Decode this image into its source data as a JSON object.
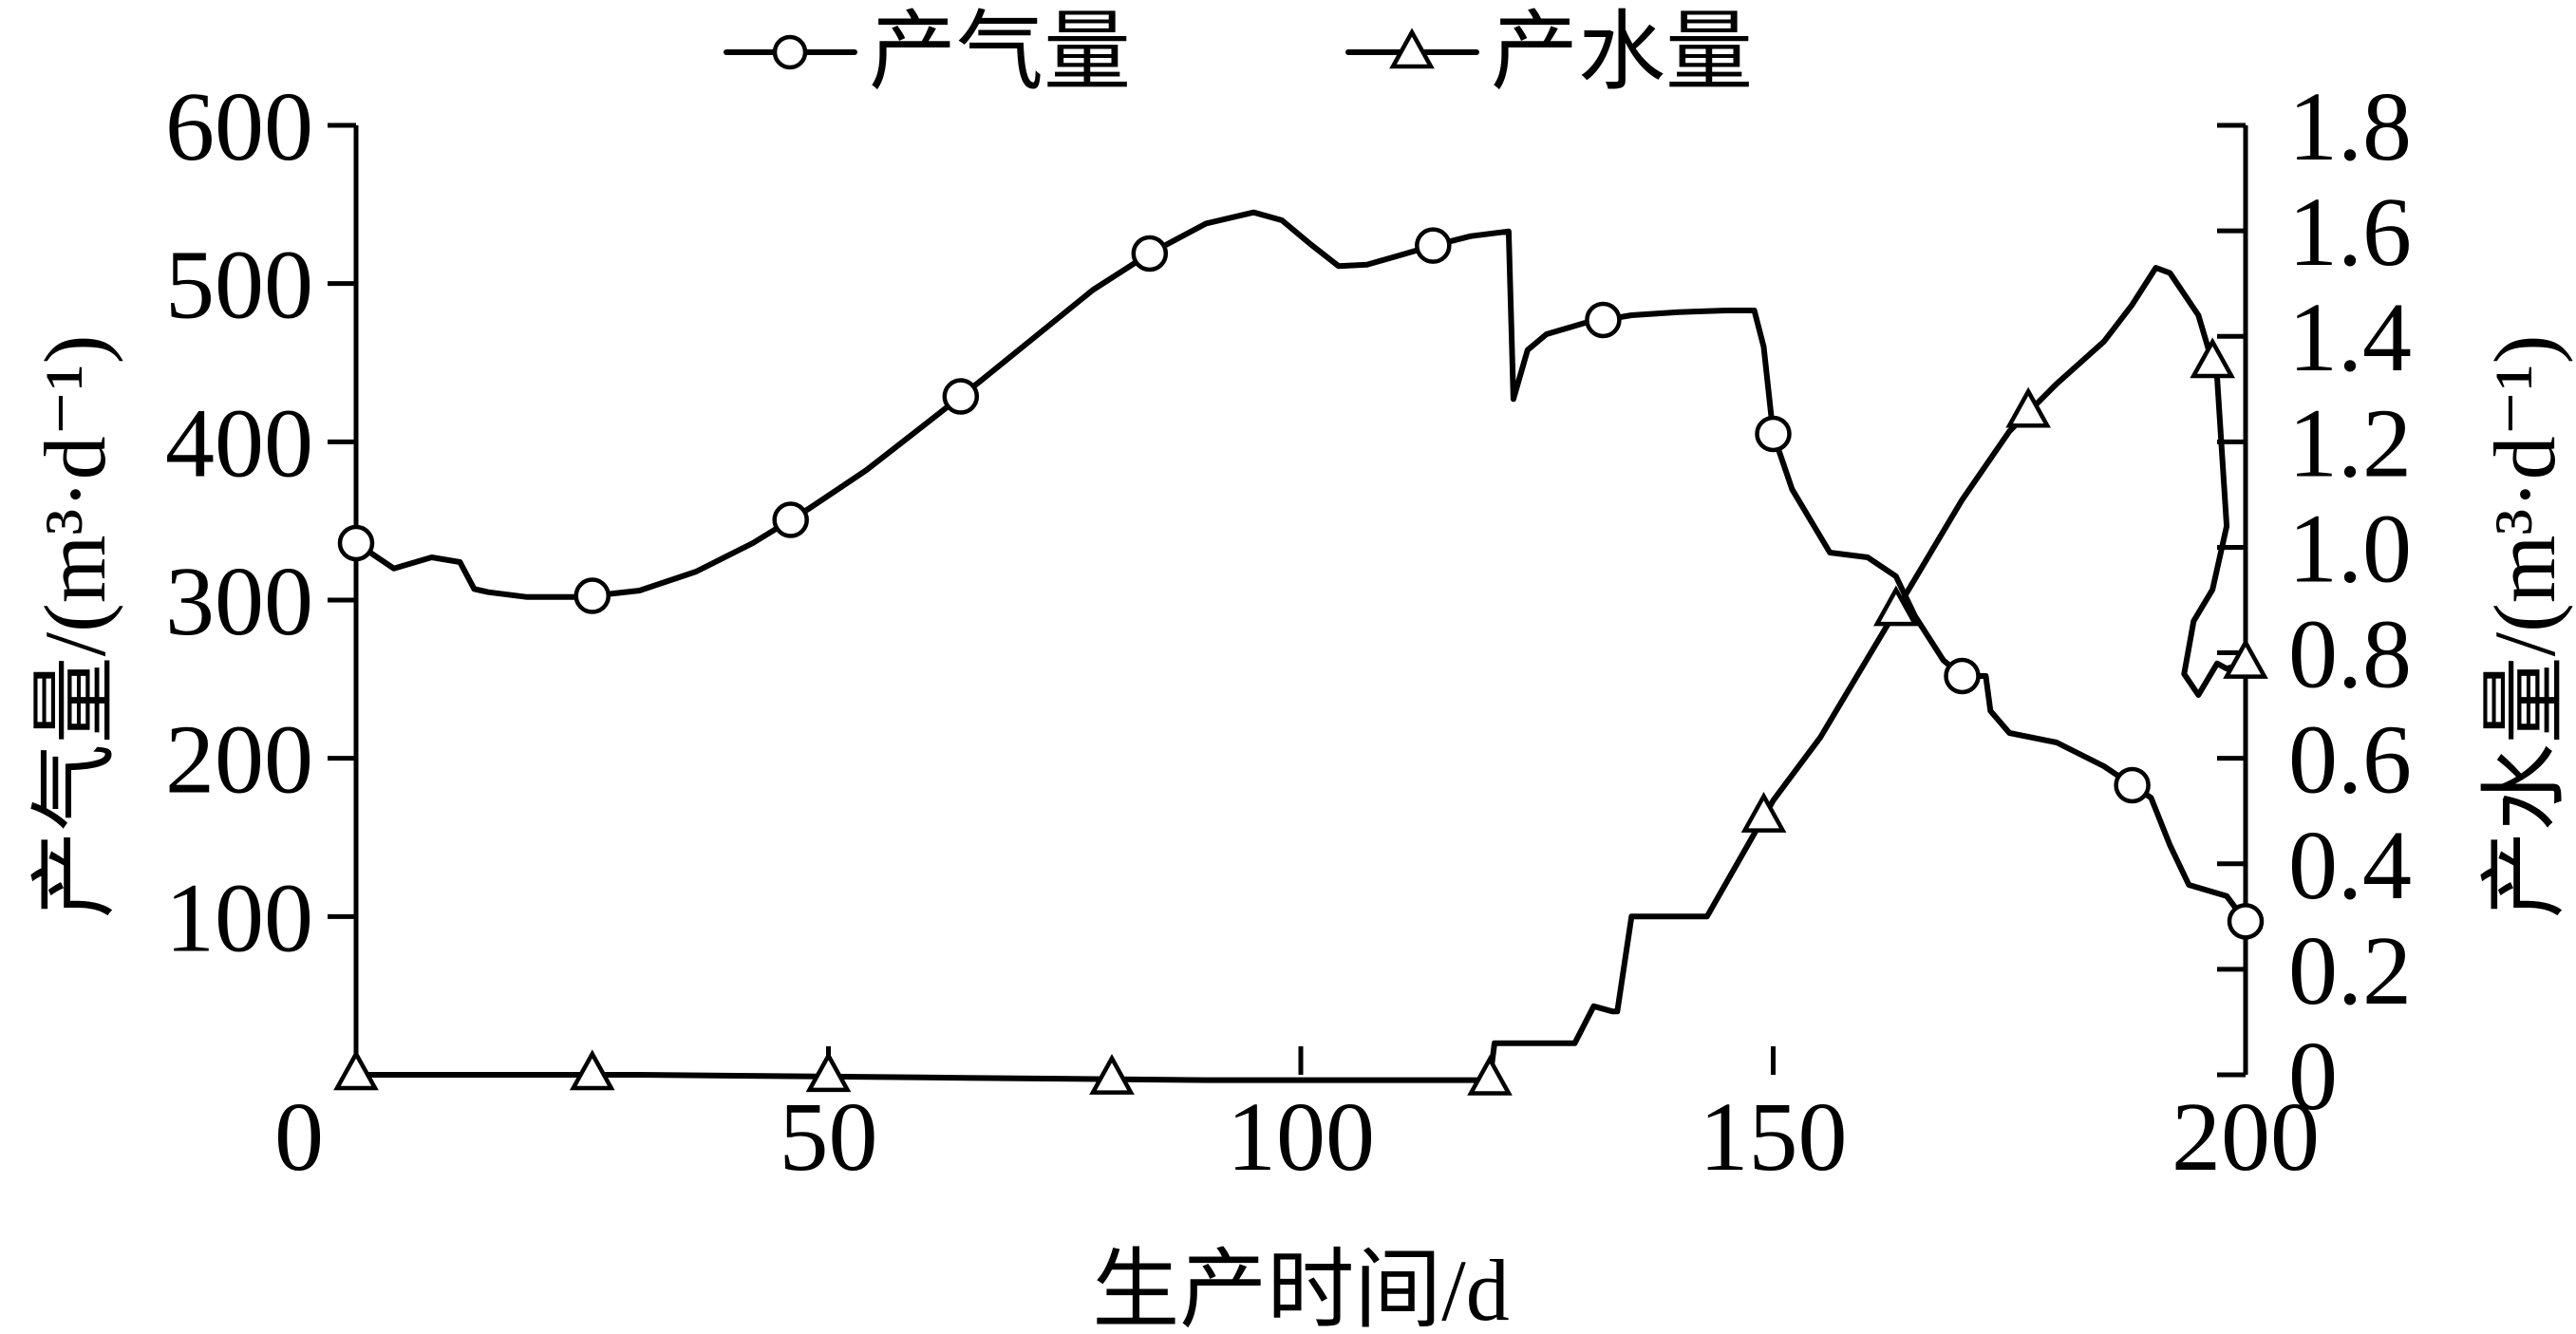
{
  "chart_data": {
    "type": "line",
    "legend": {
      "placement": "top-center",
      "entries": [
        {
          "label": "产气量",
          "marker": "circle",
          "series": "gas"
        },
        {
          "label": "产水量",
          "marker": "triangle",
          "series": "water"
        }
      ]
    },
    "xlabel": "生产时间/d",
    "ylabel_left": "产气量/(m³·d⁻¹)",
    "ylabel_right": "产水量/(m³·d⁻¹)",
    "xlim": [
      0,
      200
    ],
    "ylim_left": [
      0,
      600
    ],
    "ylim_right": [
      0,
      1.8
    ],
    "x_ticks": [
      0,
      50,
      100,
      150,
      200
    ],
    "x_tick_labels": [
      "0",
      "50",
      "100",
      "150",
      "200"
    ],
    "y_left_ticks": [
      100,
      200,
      300,
      400,
      500,
      600
    ],
    "y_left_tick_labels": [
      "100",
      "200",
      "300",
      "400",
      "500",
      "600"
    ],
    "y_right_ticks": [
      0,
      0.2,
      0.4,
      0.6,
      0.8,
      1.0,
      1.2,
      1.4,
      1.6,
      1.8
    ],
    "y_right_tick_labels": [
      "0",
      "0.2",
      "0.4",
      "0.6",
      "0.8",
      "1.0",
      "1.2",
      "1.4",
      "1.6",
      "1.8"
    ],
    "grid": false,
    "series": [
      {
        "name": "产气量",
        "axis": "left",
        "x": [
          0,
          4,
          8,
          11,
          12.5,
          14,
          18,
          24,
          30,
          36,
          42,
          48,
          54,
          60,
          66,
          72,
          78,
          84,
          90,
          95,
          98,
          101,
          104,
          107,
          110,
          114,
          118,
          122,
          122.5,
          124,
          126,
          130,
          135,
          140,
          145,
          148,
          149,
          150,
          152,
          156,
          160,
          163,
          165,
          168,
          170,
          172.5,
          173,
          175,
          180,
          185,
          190,
          192,
          194,
          198,
          200
        ],
        "y": [
          336,
          320,
          327,
          324,
          307,
          305,
          302,
          302,
          306,
          318,
          336,
          358,
          382,
          410,
          438,
          467,
          496,
          519,
          538,
          545,
          540,
          525,
          511,
          512,
          517,
          524,
          530,
          533,
          427,
          458,
          468,
          475,
          480,
          482,
          483,
          483,
          460,
          405,
          370,
          330,
          327,
          315,
          290,
          262,
          252,
          252,
          230,
          216,
          210,
          195,
          175,
          145,
          120,
          113,
          97
        ]
      },
      {
        "name": "产水量",
        "axis": "right",
        "x": [
          0,
          30,
          60,
          90,
          120,
          120.5,
          126,
          127,
          129,
          131,
          133,
          133.5,
          135,
          141,
          143,
          150,
          155,
          160,
          165,
          170,
          175,
          180,
          185,
          188,
          190.5,
          192,
          195,
          197,
          198,
          196.5,
          194.5,
          193.5,
          195,
          197,
          198,
          200
        ],
        "y": [
          0,
          0,
          -0.005,
          -0.01,
          -0.01,
          0.06,
          0.06,
          0.06,
          0.06,
          0.13,
          0.12,
          0.12,
          0.3,
          0.3,
          0.3,
          0.52,
          0.64,
          0.79,
          0.94,
          1.09,
          1.22,
          1.31,
          1.39,
          1.46,
          1.53,
          1.52,
          1.44,
          1.32,
          1.04,
          0.92,
          0.86,
          0.76,
          0.72,
          0.78,
          0.77,
          0.78
        ]
      }
    ],
    "markers": {
      "gas_x": [
        0,
        25,
        46,
        64,
        84,
        114,
        132,
        150,
        170,
        188,
        200
      ],
      "water_x": [
        0,
        25,
        50,
        80,
        120,
        149,
        163,
        177,
        196.5,
        200
      ]
    }
  }
}
